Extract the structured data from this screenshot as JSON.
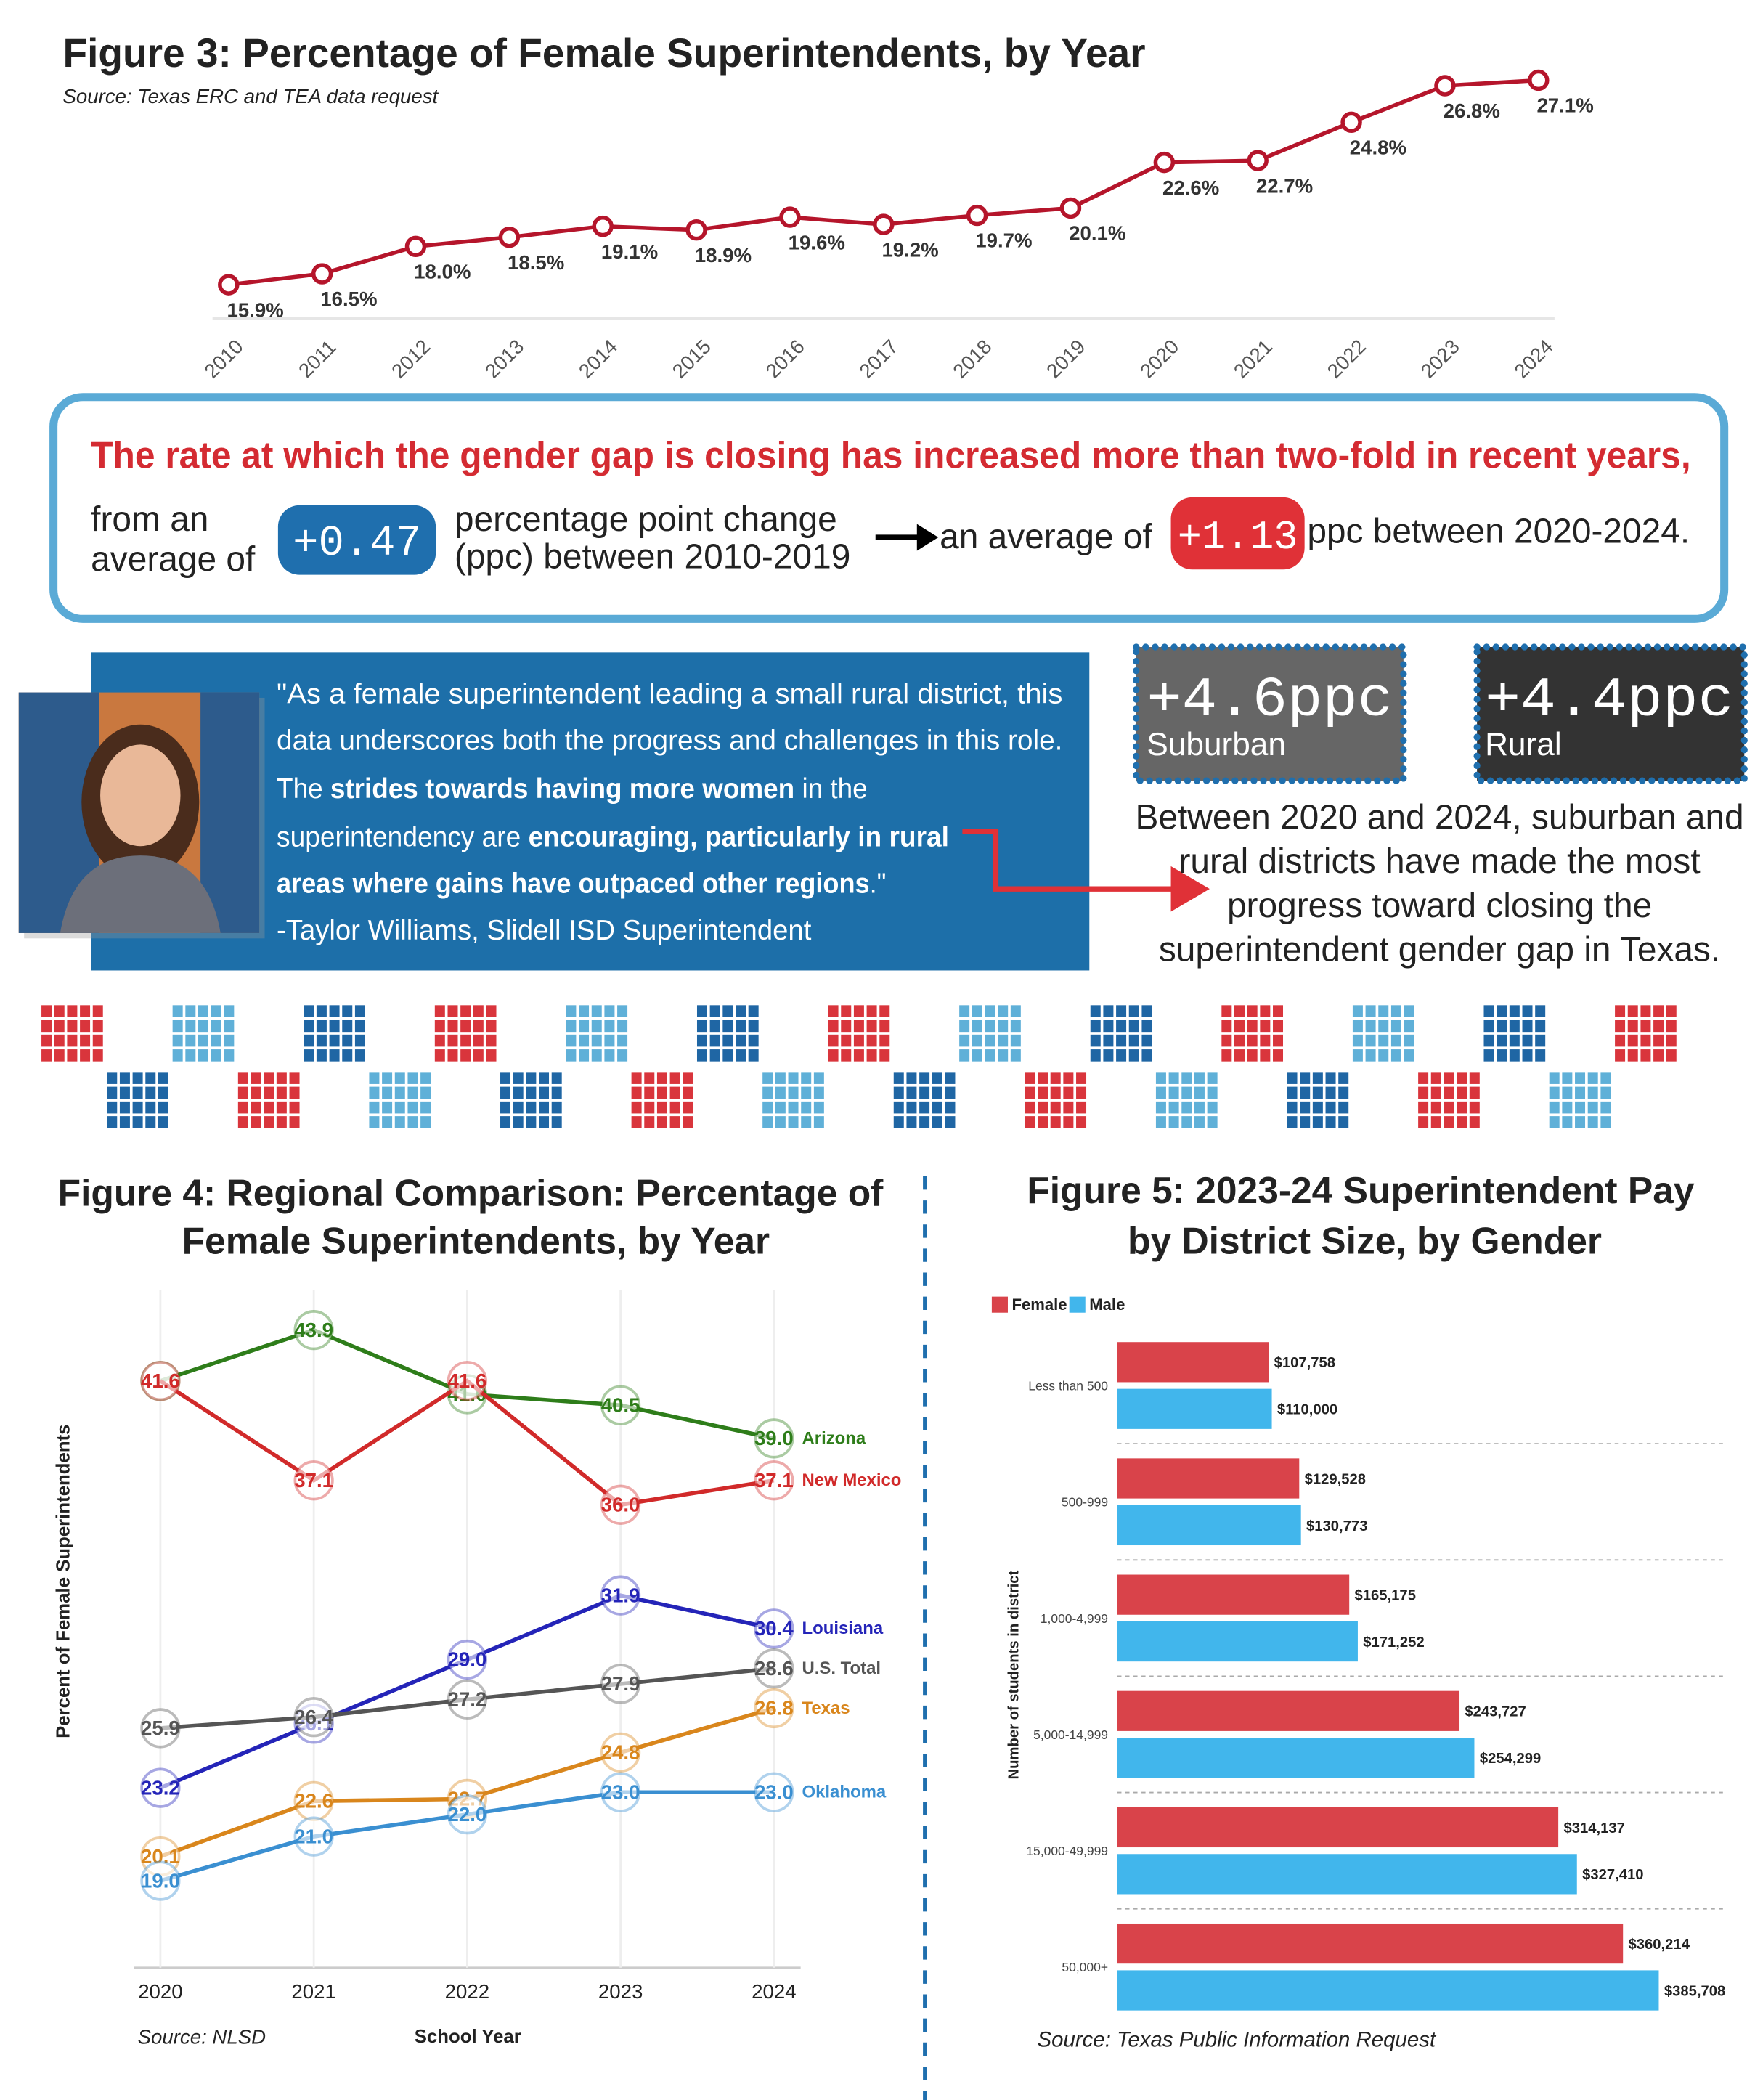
{
  "chart_data": [
    {
      "type": "line",
      "title": "Figure 3: Percentage of Female Superintendents, by Year",
      "source": "Source: Texas ERC and TEA data request",
      "categories": [
        "2010",
        "2011",
        "2012",
        "2013",
        "2014",
        "2015",
        "2016",
        "2017",
        "2018",
        "2019",
        "2020",
        "2021",
        "2022",
        "2023",
        "2024"
      ],
      "values": [
        15.9,
        16.5,
        18.0,
        18.5,
        19.1,
        18.9,
        19.6,
        19.2,
        19.7,
        20.1,
        22.6,
        22.7,
        24.8,
        26.8,
        27.1
      ],
      "value_labels": [
        "15.9%",
        "16.5%",
        "18.0%",
        "18.5%",
        "19.1%",
        "18.9%",
        "19.6%",
        "19.2%",
        "19.7%",
        "20.1%",
        "22.6%",
        "22.7%",
        "24.8%",
        "26.8%",
        "27.1%"
      ],
      "color": "#b5152b"
    },
    {
      "type": "line",
      "title": [
        "Figure 4: Regional Comparison: Percentage of",
        "Female Superintendents, by Year"
      ],
      "categories": [
        "2020",
        "2021",
        "2022",
        "2023",
        "2024"
      ],
      "series": [
        {
          "name": "Arizona",
          "color": "#2e7d1a",
          "values": [
            41.6,
            43.9,
            41.0,
            40.5,
            39.0
          ],
          "value_labels": [
            "41.6",
            "43.9",
            "41.0",
            "40.5",
            "39.0"
          ]
        },
        {
          "name": "New Mexico",
          "color": "#d12a2a",
          "values": [
            41.6,
            37.1,
            41.6,
            36.0,
            37.1
          ],
          "value_labels": [
            "41.6",
            "37.1",
            "41.6",
            "36.0",
            "37.1"
          ]
        },
        {
          "name": "Louisiana",
          "color": "#2424b8",
          "values": [
            23.2,
            26.1,
            29.0,
            31.9,
            30.4
          ],
          "value_labels": [
            "23.2",
            "26.1",
            "29.0",
            "31.9",
            "30.4"
          ]
        },
        {
          "name": "U.S. Total",
          "color": "#555555",
          "values": [
            25.9,
            26.4,
            27.2,
            27.9,
            28.6
          ],
          "value_labels": [
            "25.9",
            "26.4",
            "27.2",
            "27.9",
            "28.6"
          ]
        },
        {
          "name": "Texas",
          "color": "#d9861c",
          "values": [
            20.1,
            22.6,
            22.7,
            24.8,
            26.8
          ],
          "value_labels": [
            "20.1",
            "22.6",
            "22.7",
            "24.8",
            "26.8"
          ]
        },
        {
          "name": "Oklahoma",
          "color": "#3a8fd1",
          "values": [
            19.0,
            21.0,
            22.0,
            23.0,
            23.0
          ],
          "value_labels": [
            "19.0",
            "21.0",
            "22.0",
            "23.0",
            "23.0"
          ]
        }
      ],
      "ylabel": "Percent of Female Superintendents",
      "xlabel": "School Year",
      "source": "Source: NLSD"
    },
    {
      "type": "hbar",
      "title": [
        "Figure 5: 2023-24 Superintendent Pay",
        "by District Size, by Gender"
      ],
      "categories": [
        "Less than 500",
        "500-999",
        "1,000-4,999",
        "5,000-14,999",
        "15,000-49,999",
        "50,000+"
      ],
      "series": [
        {
          "name": "Female",
          "color": "#d9434a",
          "values": [
            107758,
            129528,
            165175,
            243727,
            314137,
            360214
          ],
          "value_labels": [
            "$107,758",
            "$129,528",
            "$165,175",
            "$243,727",
            "$314,137",
            "$360,214"
          ]
        },
        {
          "name": "Male",
          "color": "#41b6ec",
          "values": [
            110000,
            130773,
            171252,
            254299,
            327410,
            385708
          ],
          "value_labels": [
            "$110,000",
            "$130,773",
            "$171,252",
            "$254,299",
            "$327,410",
            "$385,708"
          ]
        }
      ],
      "ylabel": "Number of students in district",
      "source": "Source: Texas Public Information Request",
      "legend": "top-left"
    }
  ],
  "callout": {
    "heading": "The rate at which the gender gap is closing has increased more than two-fold in recent years,",
    "left": [
      "from an",
      "average of"
    ],
    "early": "+0.47",
    "middle": [
      "percentage point change",
      "(ppc) between 2010-2019"
    ],
    "right": "an average of",
    "recent": "+1.13",
    "end": "ppc between 2020-2024."
  },
  "quote": {
    "lines": [
      [
        "\"As a female superintendent leading a small rural district, this"
      ],
      [
        "data underscores both the progress and challenges in this role."
      ],
      [
        "The ",
        "strides towards having more women",
        " in the"
      ],
      [
        "superintendency are ",
        "encouraging, particularly in rural"
      ],
      [
        "areas where gains have outpaced other regions",
        ".\""
      ]
    ],
    "attribution": "-Taylor Williams, Slidell ISD Superintendent"
  },
  "regions": {
    "badges": [
      {
        "value": "+4.6ppc",
        "label": "Suburban"
      },
      {
        "value": "+4.4ppc",
        "label": "Rural"
      }
    ],
    "text": [
      "Between 2020 and 2024, suburban and",
      "rural districts have made the most",
      "progress toward closing the",
      "superintendent gender gap in Texas."
    ]
  }
}
